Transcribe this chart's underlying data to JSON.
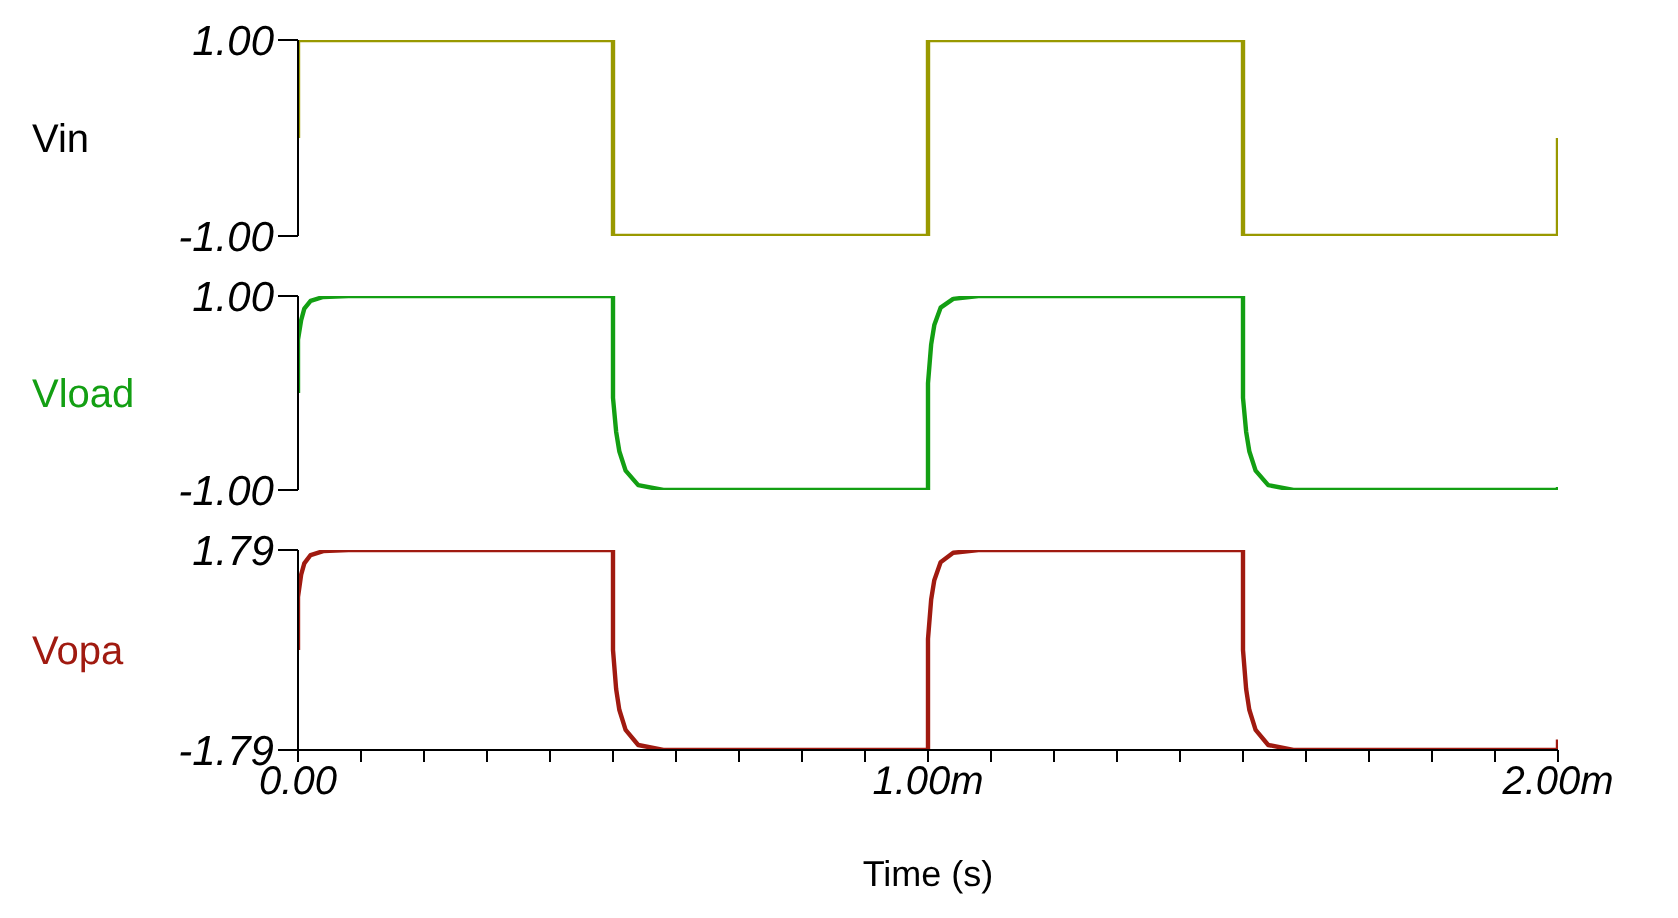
{
  "chart_data": [
    {
      "type": "line",
      "ylabel": "Vin",
      "xlim": [
        0,
        2
      ],
      "ylim": [
        -1,
        1
      ],
      "yticks": [
        {
          "value": -1,
          "label": "-1.00"
        },
        {
          "value": 1,
          "label": "1.00"
        }
      ],
      "tick_labels": "y",
      "marker": "none",
      "line_style": "solid",
      "series": [
        {
          "color": "#999900",
          "x": [
            0,
            0,
            0.5,
            0.5,
            1,
            1,
            1.5,
            1.5,
            2,
            2
          ],
          "values": [
            0,
            1,
            1,
            -1,
            -1,
            1,
            1,
            -1,
            -1,
            0
          ]
        }
      ]
    },
    {
      "type": "line",
      "ylabel": "Vload",
      "xlim": [
        0,
        2
      ],
      "ylim": [
        -1,
        1
      ],
      "yticks": [
        {
          "value": -1,
          "label": "-1.00"
        },
        {
          "value": 1,
          "label": "1.00"
        }
      ],
      "tick_labels": "y",
      "marker": "none",
      "line_style": "solid",
      "series": [
        {
          "color": "#139f13",
          "x": [
            0,
            0,
            0.005,
            0.01,
            0.02,
            0.04,
            0.08,
            0.5,
            0.5,
            0.505,
            0.51,
            0.52,
            0.54,
            0.58,
            1,
            1,
            1.005,
            1.01,
            1.02,
            1.04,
            1.08,
            1.5,
            1.5,
            1.505,
            1.51,
            1.52,
            1.54,
            1.58,
            2,
            2
          ],
          "values": [
            0,
            0.55,
            0.75,
            0.87,
            0.95,
            0.99,
            1,
            1,
            -0.05,
            -0.4,
            -0.6,
            -0.8,
            -0.95,
            -1,
            -1,
            0.1,
            0.5,
            0.7,
            0.88,
            0.97,
            1,
            1,
            -0.05,
            -0.4,
            -0.6,
            -0.8,
            -0.95,
            -1,
            -1,
            -0.97
          ]
        }
      ]
    },
    {
      "type": "line",
      "ylabel": "Vopa",
      "xlabel": "Time (s)",
      "xlim": [
        0,
        2
      ],
      "xticks": [
        {
          "value": 0,
          "label": "0.00"
        },
        {
          "value": 0.1,
          "label": null
        },
        {
          "value": 0.2,
          "label": null
        },
        {
          "value": 0.3,
          "label": null
        },
        {
          "value": 0.4,
          "label": null
        },
        {
          "value": 0.5,
          "label": null
        },
        {
          "value": 0.6,
          "label": null
        },
        {
          "value": 0.7,
          "label": null
        },
        {
          "value": 0.8,
          "label": null
        },
        {
          "value": 0.9,
          "label": null
        },
        {
          "value": 1,
          "label": "1.00m"
        },
        {
          "value": 1.1,
          "label": null
        },
        {
          "value": 1.2,
          "label": null
        },
        {
          "value": 1.3,
          "label": null
        },
        {
          "value": 1.4,
          "label": null
        },
        {
          "value": 1.5,
          "label": null
        },
        {
          "value": 1.6,
          "label": null
        },
        {
          "value": 1.7,
          "label": null
        },
        {
          "value": 1.8,
          "label": null
        },
        {
          "value": 1.9,
          "label": null
        },
        {
          "value": 2,
          "label": "2.00m"
        }
      ],
      "ylim": [
        -1.79,
        1.79
      ],
      "yticks": [
        {
          "value": -1.79,
          "label": "-1.79"
        },
        {
          "value": 1.79,
          "label": "1.79"
        }
      ],
      "marker": "none",
      "line_style": "solid",
      "series": [
        {
          "color": "#a01a10",
          "x": [
            0,
            0,
            0.005,
            0.01,
            0.02,
            0.04,
            0.08,
            0.5,
            0.5,
            0.505,
            0.51,
            0.52,
            0.54,
            0.58,
            1,
            1,
            1.005,
            1.01,
            1.02,
            1.04,
            1.08,
            1.5,
            1.5,
            1.505,
            1.51,
            1.52,
            1.54,
            1.58,
            2,
            2
          ],
          "values": [
            0,
            0.95,
            1.35,
            1.55,
            1.7,
            1.77,
            1.79,
            1.79,
            0,
            -0.7,
            -1.07,
            -1.43,
            -1.7,
            -1.79,
            -1.79,
            0.2,
            0.9,
            1.25,
            1.57,
            1.74,
            1.79,
            1.79,
            0,
            -0.7,
            -1.07,
            -1.43,
            -1.7,
            -1.79,
            -1.79,
            -1.6
          ]
        }
      ]
    }
  ]
}
